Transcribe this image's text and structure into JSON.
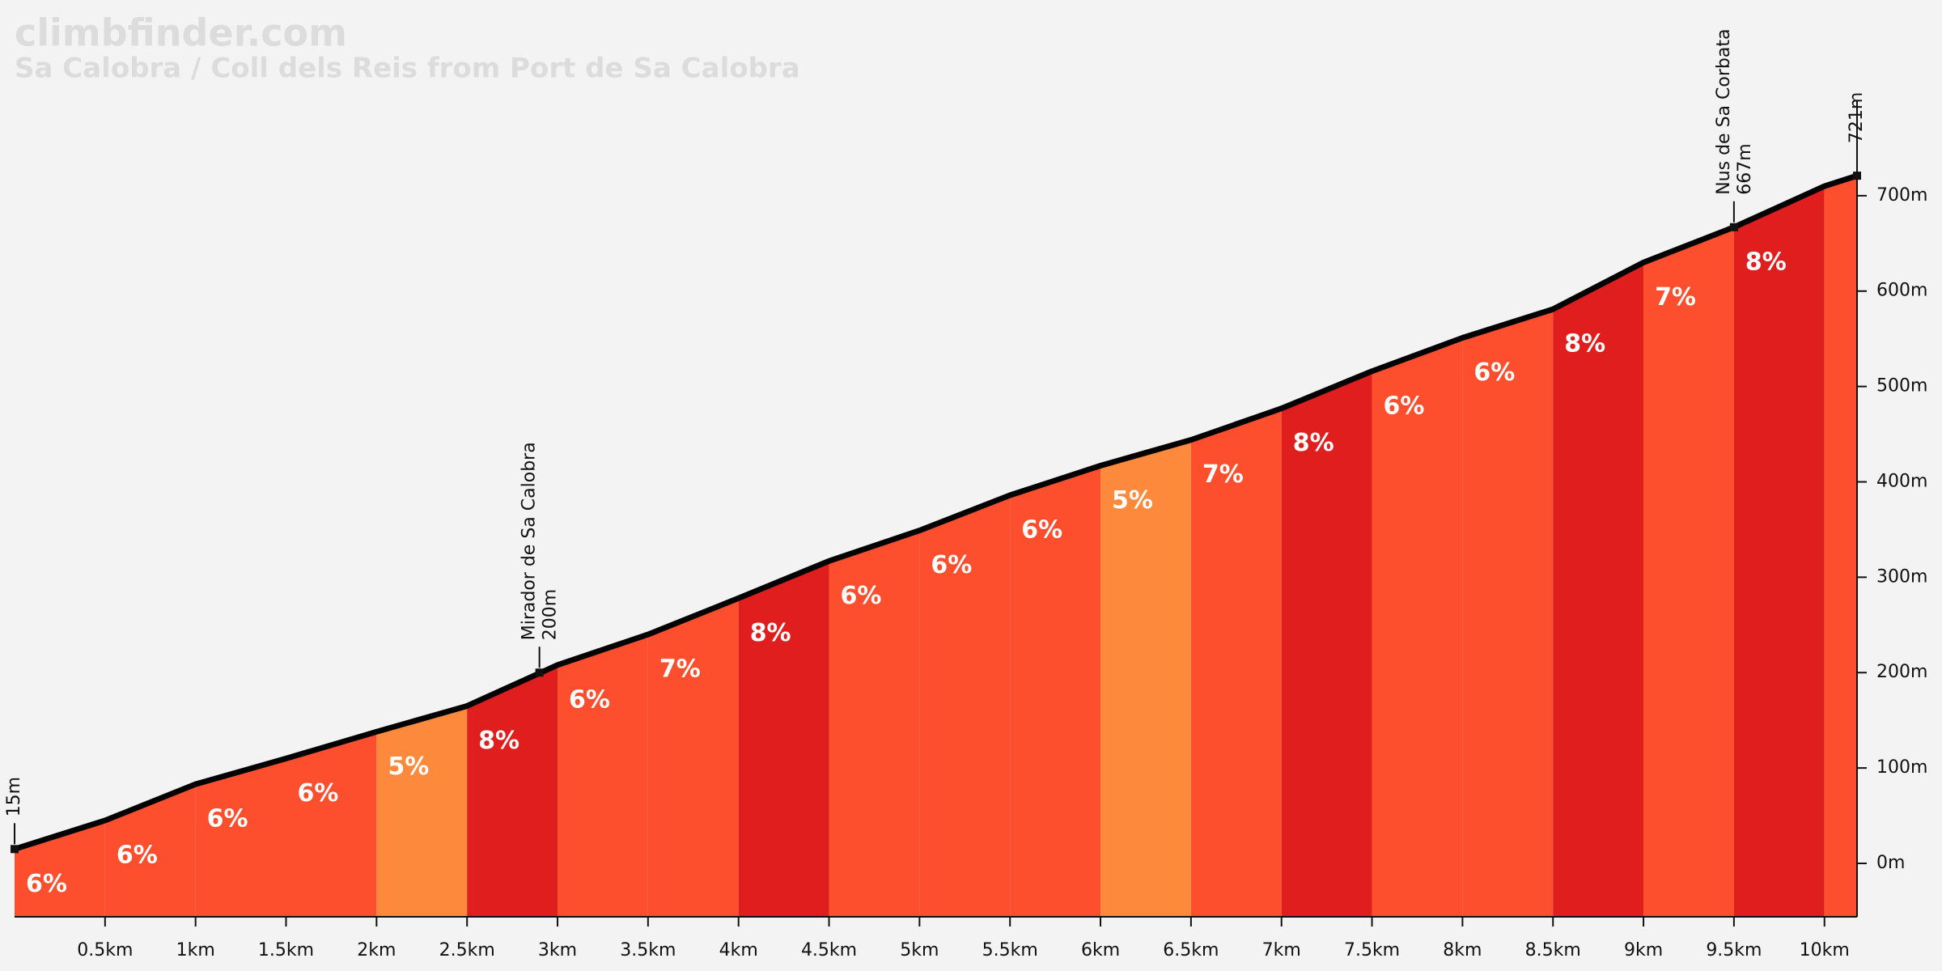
{
  "chart_data": {
    "type": "profile",
    "title": "climbfinder.com",
    "subtitle": "Sa Calobra / Coll dels Reis from Port de Sa Calobra",
    "x": [
      0,
      0.5,
      1,
      1.5,
      2,
      2.5,
      3,
      3.5,
      4,
      4.5,
      5,
      5.5,
      6,
      6.5,
      7,
      7.5,
      8,
      8.5,
      9,
      9.5,
      10,
      10.18
    ],
    "values": [
      15,
      45,
      83,
      110,
      138,
      165,
      208,
      240,
      278,
      317,
      349,
      386,
      417,
      444,
      477,
      516,
      551,
      581,
      630,
      667,
      710,
      721
    ],
    "line_color": "#000000",
    "segments": {
      "bins": [
        0,
        0.5,
        1,
        1.5,
        2,
        2.5,
        3,
        3.5,
        4,
        4.5,
        5,
        5.5,
        6,
        6.5,
        7,
        7.5,
        8,
        8.5,
        9,
        9.5,
        10,
        10.18
      ],
      "values": [
        6,
        6,
        6,
        6,
        5,
        8,
        6,
        7,
        8,
        6,
        6,
        6,
        5,
        7,
        8,
        6,
        6,
        8,
        7,
        8,
        null
      ],
      "value_labels": [
        "6%",
        "6%",
        "6%",
        "6%",
        "5%",
        "8%",
        "6%",
        "7%",
        "8%",
        "6%",
        "6%",
        "6%",
        "5%",
        "7%",
        "8%",
        "6%",
        "6%",
        "8%",
        "7%",
        "8%",
        null
      ],
      "colors": [
        "#fd4f2e",
        "#fd4f2e",
        "#fd4f2e",
        "#fd4f2e",
        "#fd8a3c",
        "#e01e1e",
        "#fd4f2e",
        "#fd4f2e",
        "#e01e1e",
        "#fd4f2e",
        "#fd4f2e",
        "#fd4f2e",
        "#fd8a3c",
        "#fd4f2e",
        "#e01e1e",
        "#fd4f2e",
        "#fd4f2e",
        "#e01e1e",
        "#fd4f2e",
        "#e01e1e",
        "#fd4f2e"
      ]
    },
    "annotations": [
      {
        "x": 0,
        "y": 15,
        "value_label": "15m"
      },
      {
        "x": 2.9,
        "y": 200,
        "text": "Mirador de Sa Calobra",
        "value_label": "200m"
      },
      {
        "x": 9.5,
        "y": 667,
        "text": "Nus de Sa Corbata",
        "value_label": "667m"
      },
      {
        "x": 10.18,
        "y": 721,
        "value_label": "721m"
      }
    ],
    "xlim": [
      0,
      10.18
    ],
    "ylim": [
      -56,
      800
    ],
    "xticks": [
      {
        "value": 0.5,
        "label": "0.5km"
      },
      {
        "value": 1,
        "label": "1km"
      },
      {
        "value": 1.5,
        "label": "1.5km"
      },
      {
        "value": 2,
        "label": "2km"
      },
      {
        "value": 2.5,
        "label": "2.5km"
      },
      {
        "value": 3,
        "label": "3km"
      },
      {
        "value": 3.5,
        "label": "3.5km"
      },
      {
        "value": 4,
        "label": "4km"
      },
      {
        "value": 4.5,
        "label": "4.5km"
      },
      {
        "value": 5,
        "label": "5km"
      },
      {
        "value": 5.5,
        "label": "5.5km"
      },
      {
        "value": 6,
        "label": "6km"
      },
      {
        "value": 6.5,
        "label": "6.5km"
      },
      {
        "value": 7,
        "label": "7km"
      },
      {
        "value": 7.5,
        "label": "7.5km"
      },
      {
        "value": 8,
        "label": "8km"
      },
      {
        "value": 8.5,
        "label": "8.5km"
      },
      {
        "value": 9,
        "label": "9km"
      },
      {
        "value": 9.5,
        "label": "9.5km"
      },
      {
        "value": 10,
        "label": "10km"
      }
    ],
    "yticks": [
      {
        "value": 0,
        "label": "0m"
      },
      {
        "value": 100,
        "label": "100m"
      },
      {
        "value": 200,
        "label": "200m"
      },
      {
        "value": 300,
        "label": "300m"
      },
      {
        "value": 400,
        "label": "400m"
      },
      {
        "value": 500,
        "label": "500m"
      },
      {
        "value": 600,
        "label": "600m"
      },
      {
        "value": 700,
        "label": "700m"
      }
    ]
  }
}
